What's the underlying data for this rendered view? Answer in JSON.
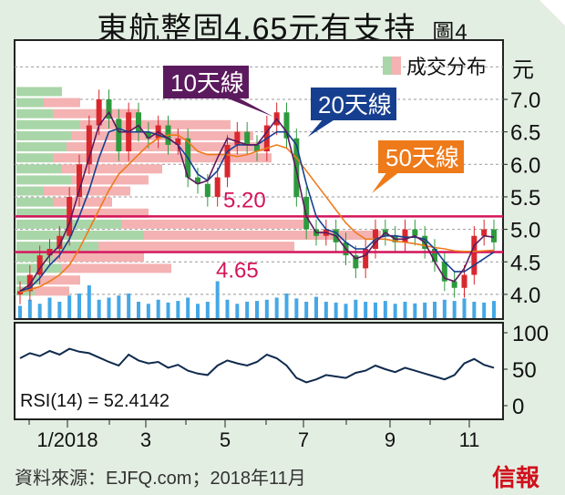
{
  "title": "東航整固4.65元有支持",
  "figure_label": "圖4",
  "source": "資料來源：EJFQ.com；2018年11月",
  "logo": "信報",
  "colors": {
    "up": "#d9272e",
    "down": "#2e9a3e",
    "ma10": "#5c1a5e",
    "ma20": "#173f8f",
    "ma50": "#ee7a1a",
    "level": "#d4145a",
    "volume": "#45a8e6",
    "profile_green": "#a9d6a9",
    "profile_pink": "#f4b2b2"
  },
  "chart_data": [
    {
      "type": "candlestick",
      "title": "東航整固4.65元有支持",
      "ylabel": "元",
      "ylim": [
        3.8,
        7.6
      ],
      "yticks": [
        "4.0",
        "4.5",
        "5.0",
        "5.5",
        "6.0",
        "6.5",
        "7.0"
      ],
      "xticks": [
        "1/2018",
        "3",
        "5",
        "7",
        "9",
        "11"
      ],
      "grid": true,
      "legend": {
        "volume_profile": "成交分布",
        "ma10": "10天線",
        "ma20": "20天線",
        "ma50": "50天線"
      },
      "levels": [
        {
          "value": 5.2,
          "label": "5.20"
        },
        {
          "value": 4.65,
          "label": "4.65"
        }
      ],
      "weekly_close": [
        4.05,
        4.3,
        4.6,
        4.7,
        4.9,
        5.5,
        6.0,
        6.6,
        7.0,
        6.7,
        6.2,
        6.8,
        6.5,
        6.4,
        6.6,
        6.3,
        6.4,
        5.8,
        5.7,
        5.5,
        5.8,
        6.3,
        6.5,
        6.3,
        6.2,
        6.6,
        6.8,
        6.4,
        5.5,
        5.0,
        4.9,
        5.0,
        4.8,
        4.6,
        4.4,
        4.7,
        5.0,
        4.9,
        4.8,
        5.0,
        4.9,
        4.7,
        4.5,
        4.2,
        4.1,
        4.3,
        4.9,
        5.0,
        4.8
      ],
      "ma10": [
        4.05,
        4.15,
        4.4,
        4.6,
        4.75,
        5.1,
        5.6,
        6.1,
        6.6,
        6.8,
        6.5,
        6.5,
        6.6,
        6.4,
        6.5,
        6.4,
        6.3,
        5.8,
        5.7,
        5.75,
        6.1,
        6.4,
        6.35,
        6.3,
        6.3,
        6.5,
        6.7,
        6.5,
        5.9,
        5.2,
        4.95,
        4.95,
        4.9,
        4.7,
        4.55,
        4.6,
        4.8,
        4.95,
        4.85,
        4.85,
        4.9,
        4.8,
        4.5,
        4.25,
        4.2,
        4.4,
        4.75,
        4.9,
        4.88
      ],
      "ma20": [
        4.05,
        4.1,
        4.25,
        4.45,
        4.6,
        4.85,
        5.2,
        5.6,
        6.1,
        6.5,
        6.55,
        6.5,
        6.5,
        6.5,
        6.45,
        6.4,
        6.3,
        6.1,
        5.85,
        5.75,
        5.9,
        6.2,
        6.3,
        6.3,
        6.3,
        6.4,
        6.5,
        6.5,
        6.3,
        5.7,
        5.2,
        5.0,
        4.95,
        4.8,
        4.7,
        4.7,
        4.85,
        4.9,
        4.9,
        4.88,
        4.88,
        4.85,
        4.7,
        4.5,
        4.35,
        4.35,
        4.45,
        4.55,
        4.65
      ],
      "ma50": [
        4.03,
        4.07,
        4.12,
        4.2,
        4.3,
        4.45,
        4.7,
        5.0,
        5.3,
        5.6,
        5.85,
        6.0,
        6.15,
        6.3,
        6.4,
        6.45,
        6.45,
        6.35,
        6.2,
        6.15,
        6.15,
        6.15,
        6.12,
        6.15,
        6.2,
        6.25,
        6.3,
        6.25,
        6.1,
        5.9,
        5.7,
        5.5,
        5.3,
        5.1,
        4.95,
        4.85,
        4.85,
        4.85,
        4.82,
        4.8,
        4.78,
        4.75,
        4.72,
        4.7,
        4.67,
        4.66,
        4.66,
        4.67,
        4.68
      ],
      "volume": [
        30,
        45,
        35,
        50,
        40,
        55,
        60,
        80,
        45,
        50,
        55,
        60,
        40,
        35,
        45,
        38,
        42,
        50,
        35,
        40,
        90,
        45,
        35,
        40,
        42,
        45,
        50,
        60,
        48,
        40,
        52,
        40,
        38,
        35,
        45,
        40,
        38,
        42,
        35,
        40,
        36,
        38,
        40,
        45,
        42,
        48,
        40,
        38,
        42
      ],
      "volume_profile": [
        {
          "price": 4.05,
          "green": 20,
          "pink": 38
        },
        {
          "price": 4.22,
          "green": 25,
          "pink": 45
        },
        {
          "price": 4.4,
          "green": 50,
          "pink": 120
        },
        {
          "price": 4.57,
          "green": 40,
          "pink": 100
        },
        {
          "price": 4.74,
          "green": 90,
          "pink": 215
        },
        {
          "price": 4.91,
          "green": 140,
          "pink": 260
        },
        {
          "price": 5.08,
          "green": 115,
          "pink": 200
        },
        {
          "price": 5.25,
          "green": 55,
          "pink": 90
        },
        {
          "price": 5.42,
          "green": 40,
          "pink": 65
        },
        {
          "price": 5.59,
          "green": 30,
          "pink": 95
        },
        {
          "price": 5.76,
          "green": 60,
          "pink": 85
        },
        {
          "price": 5.93,
          "green": 50,
          "pink": 110
        },
        {
          "price": 6.1,
          "green": 40,
          "pink": 240
        },
        {
          "price": 6.27,
          "green": 55,
          "pink": 220
        },
        {
          "price": 6.44,
          "green": 60,
          "pink": 200
        },
        {
          "price": 6.61,
          "green": 70,
          "pink": 165
        },
        {
          "price": 6.78,
          "green": 40,
          "pink": 95
        },
        {
          "price": 6.95,
          "green": 30,
          "pink": 40
        },
        {
          "price": 7.12,
          "green": 50,
          "pink": 0
        }
      ]
    },
    {
      "type": "line",
      "label": "RSI(14) = 52.4142",
      "ylim": [
        0,
        100
      ],
      "yticks": [
        "0",
        "50",
        "100"
      ],
      "values": [
        65,
        72,
        68,
        75,
        70,
        78,
        74,
        72,
        66,
        60,
        55,
        70,
        62,
        58,
        60,
        52,
        56,
        48,
        44,
        42,
        55,
        62,
        58,
        55,
        60,
        70,
        65,
        55,
        38,
        32,
        36,
        42,
        40,
        38,
        45,
        48,
        55,
        50,
        46,
        52,
        48,
        44,
        40,
        36,
        42,
        58,
        64,
        56,
        52
      ]
    }
  ]
}
